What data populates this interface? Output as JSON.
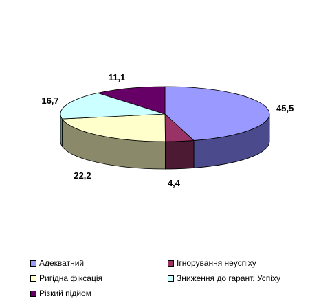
{
  "chart_data": {
    "type": "pie",
    "style": "3d",
    "slices": [
      {
        "label": "Адекватний",
        "value": 45.5,
        "display": "45,5",
        "color": "#9999ff",
        "side": "#4a4a8c"
      },
      {
        "label": "Ігнорування неуспіху",
        "value": 4.4,
        "display": "4,4",
        "color": "#993366",
        "side": "#4d1a33"
      },
      {
        "label": "Ригідна фіксація",
        "value": 22.2,
        "display": "22,2",
        "color": "#ffffcc",
        "side": "#8a8a6a"
      },
      {
        "label": "Зниження до гарант. Успіху",
        "value": 16.7,
        "display": "16,7",
        "color": "#ccffff",
        "side": "#6a8a8a"
      },
      {
        "label": "Різкий підйом",
        "value": 11.1,
        "display": "11,1",
        "color": "#660066",
        "side": "#330033"
      }
    ],
    "legend_position": "bottom"
  }
}
